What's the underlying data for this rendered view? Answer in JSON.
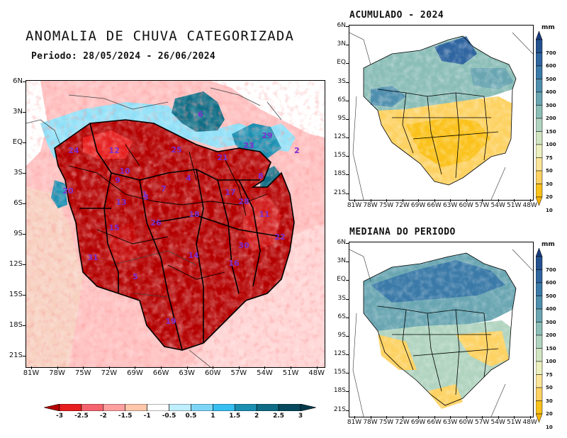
{
  "main": {
    "title": "ANOMALIA DE CHUVA CATEGORIZADA",
    "period": "Periodo: 28/05/2024 - 26/06/2024",
    "lat_labels": [
      "6N",
      "3N",
      "EQ",
      "3S",
      "6S",
      "9S",
      "12S",
      "15S",
      "18S",
      "21S"
    ],
    "lon_labels": [
      "81W",
      "78W",
      "75W",
      "72W",
      "69W",
      "66W",
      "63W",
      "60W",
      "57W",
      "54W",
      "51W",
      "48W"
    ],
    "basin_numbers": [
      "6",
      "24",
      "12",
      "25",
      "21",
      "23",
      "29",
      "2",
      "10",
      "9",
      "1",
      "7",
      "4",
      "20",
      "8",
      "13",
      "17",
      "3",
      "28",
      "11",
      "15",
      "26",
      "18",
      "22",
      "30",
      "14",
      "16",
      "31",
      "5",
      "19"
    ],
    "legend": {
      "labels": [
        "-3",
        "-2.5",
        "-2",
        "-1.5",
        "-1",
        "-0.5",
        "0.5",
        "1",
        "1.5",
        "2",
        "2.5",
        "3"
      ],
      "colors": [
        "#b40000",
        "#e61e1e",
        "#f5646e",
        "#ffa0a0",
        "#ffc8aa",
        "#ffffff",
        "#bfeefc",
        "#7ed6f7",
        "#37bff1",
        "#1b8fb1",
        "#0e6c85",
        "#07495f",
        "#053a4b"
      ]
    }
  },
  "accumulated": {
    "title": "ACUMULADO - 2024",
    "unit": "mm",
    "lat_labels": [
      "6N",
      "3N",
      "EQ",
      "3S",
      "6S",
      "9S",
      "12S",
      "15S",
      "18S",
      "21S"
    ],
    "lon_labels": [
      "81W",
      "78W",
      "75W",
      "72W",
      "69W",
      "66W",
      "63W",
      "60W",
      "57W",
      "54W",
      "51W",
      "48W"
    ],
    "scale_labels": [
      "700",
      "600",
      "500",
      "400",
      "300",
      "200",
      "150",
      "100",
      "75",
      "50",
      "30",
      "20",
      "10"
    ],
    "scale_colors": [
      "#1a3d7c",
      "#24528f",
      "#2f65a0",
      "#3b7aa8",
      "#4f8fae",
      "#6aa6b2",
      "#8cbeb8",
      "#b1d4c0",
      "#d2e5c3",
      "#ecf0bf",
      "#fbe59a",
      "#fdd262",
      "#fbc21c",
      "#f7b500"
    ]
  },
  "median": {
    "title": "MEDIANA DO PERIODO",
    "unit": "mm",
    "lat_labels": [
      "6N",
      "3N",
      "EQ",
      "3S",
      "6S",
      "9S",
      "12S",
      "15S",
      "18S",
      "21S"
    ],
    "lon_labels": [
      "81W",
      "78W",
      "75W",
      "72W",
      "69W",
      "66W",
      "63W",
      "60W",
      "57W",
      "54W",
      "51W",
      "48W"
    ],
    "scale_labels": [
      "700",
      "600",
      "500",
      "400",
      "300",
      "200",
      "150",
      "100",
      "75",
      "50",
      "30",
      "20",
      "10"
    ]
  }
}
